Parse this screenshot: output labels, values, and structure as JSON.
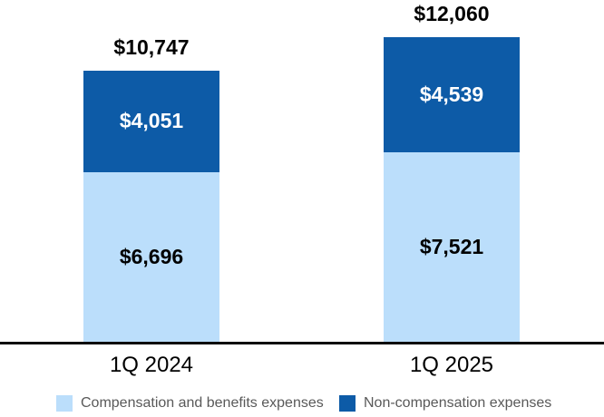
{
  "chart_data": {
    "type": "bar",
    "stacked": true,
    "title": "",
    "xlabel": "",
    "ylabel": "",
    "categories": [
      "1Q 2024",
      "1Q 2025"
    ],
    "series": [
      {
        "name": "Compensation and benefits expenses",
        "color": "#bbdefb",
        "label_color": "#000000",
        "values": [
          6696,
          7521
        ],
        "labels": [
          "$6,696",
          "$7,521"
        ]
      },
      {
        "name": "Non-compensation expenses",
        "color": "#0d5ba7",
        "label_color": "#ffffff",
        "values": [
          4051,
          4539
        ],
        "labels": [
          "$4,051",
          "$4,539"
        ]
      }
    ],
    "totals": [
      10747,
      12060
    ],
    "total_labels": [
      "$10,747",
      "$12,060"
    ],
    "ylim": [
      0,
      12060
    ],
    "grid": false,
    "legend_position": "bottom",
    "axis_line_color": "#0d0d0d",
    "legend_text_color": "#595959"
  }
}
